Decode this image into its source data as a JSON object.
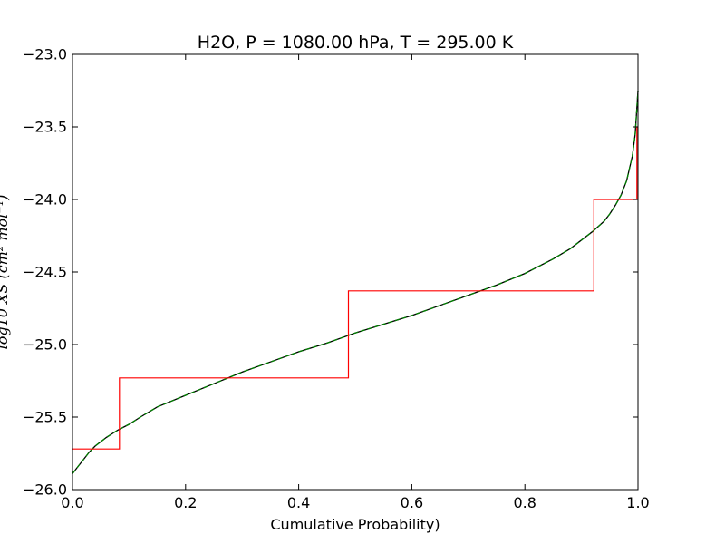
{
  "chart_data": {
    "type": "line",
    "title": "H2O, P = 1080.00 hPa, T = 295.00 K",
    "xlabel": "Cumulative Probability)",
    "ylabel": "log10 XS (cm² mol⁻¹)",
    "xlim": [
      0.0,
      1.0
    ],
    "ylim": [
      -26.0,
      -23.0
    ],
    "xticks": [
      "0.0",
      "0.2",
      "0.4",
      "0.6",
      "0.8",
      "1.0"
    ],
    "yticks": [
      "−26.0",
      "−25.5",
      "−25.0",
      "−24.5",
      "−24.0",
      "−23.5",
      "−23.0"
    ],
    "grid": false,
    "legend": "none",
    "series": [
      {
        "style": "line",
        "color": "#000000",
        "x": [
          0.0,
          0.01,
          0.02,
          0.03,
          0.04,
          0.06,
          0.08,
          0.1,
          0.12,
          0.15,
          0.2,
          0.25,
          0.3,
          0.35,
          0.4,
          0.45,
          0.5,
          0.55,
          0.6,
          0.65,
          0.7,
          0.75,
          0.8,
          0.85,
          0.88,
          0.9,
          0.92,
          0.94,
          0.95,
          0.96,
          0.97,
          0.98,
          0.99,
          0.995,
          1.0
        ],
        "y": [
          -25.89,
          -25.84,
          -25.79,
          -25.74,
          -25.7,
          -25.64,
          -25.59,
          -25.55,
          -25.5,
          -25.43,
          -25.35,
          -25.27,
          -25.19,
          -25.12,
          -25.05,
          -24.99,
          -24.92,
          -24.86,
          -24.8,
          -24.73,
          -24.66,
          -24.59,
          -24.51,
          -24.41,
          -24.34,
          -24.28,
          -24.22,
          -24.15,
          -24.1,
          -24.04,
          -23.97,
          -23.87,
          -23.7,
          -23.55,
          -23.25
        ]
      },
      {
        "style": "line",
        "color": "#007f00",
        "dashed": true,
        "x": [
          0.0,
          0.01,
          0.02,
          0.03,
          0.04,
          0.06,
          0.08,
          0.1,
          0.12,
          0.15,
          0.2,
          0.25,
          0.3,
          0.35,
          0.4,
          0.45,
          0.5,
          0.55,
          0.6,
          0.65,
          0.7,
          0.75,
          0.8,
          0.85,
          0.88,
          0.9,
          0.92,
          0.94,
          0.95,
          0.96,
          0.97,
          0.98,
          0.99,
          0.995,
          1.0
        ],
        "y": [
          -25.89,
          -25.84,
          -25.79,
          -25.74,
          -25.7,
          -25.64,
          -25.59,
          -25.55,
          -25.5,
          -25.43,
          -25.35,
          -25.27,
          -25.19,
          -25.12,
          -25.05,
          -24.99,
          -24.92,
          -24.86,
          -24.8,
          -24.73,
          -24.66,
          -24.59,
          -24.51,
          -24.41,
          -24.34,
          -24.28,
          -24.22,
          -24.15,
          -24.1,
          -24.04,
          -23.97,
          -23.87,
          -23.7,
          -23.55,
          -23.25
        ]
      },
      {
        "style": "step",
        "color": "#ff0000",
        "x": [
          0.0,
          0.083,
          0.083,
          0.488,
          0.488,
          0.922,
          0.922,
          0.998,
          0.998,
          1.0
        ],
        "y": [
          -25.72,
          -25.72,
          -25.23,
          -25.23,
          -24.63,
          -24.63,
          -24.0,
          -24.0,
          -23.5,
          -23.5
        ]
      }
    ]
  }
}
